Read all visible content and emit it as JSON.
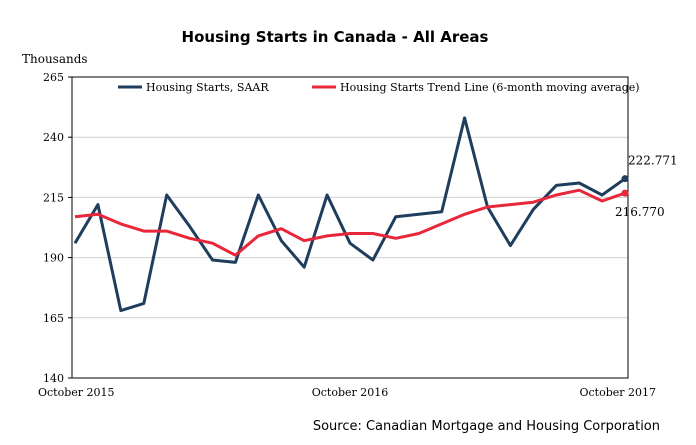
{
  "chart_data": {
    "type": "line",
    "title": "Housing Starts in Canada - All Areas",
    "ylabel": "Thousands",
    "ylim": [
      140,
      265
    ],
    "yticks": [
      140,
      165,
      190,
      215,
      240,
      265
    ],
    "x": [
      "October 2015",
      "November 2015",
      "December 2015",
      "January 2016",
      "February 2016",
      "March 2016",
      "April 2016",
      "May 2016",
      "June 2016",
      "July 2016",
      "August 2016",
      "September 2016",
      "October 2016",
      "November 2016",
      "December 2016",
      "January 2017",
      "February 2017",
      "March 2017",
      "April 2017",
      "May 2017",
      "June 2017",
      "July 2017",
      "August 2017",
      "September 2017",
      "October 2017"
    ],
    "xtick_labels": [
      {
        "index": 0,
        "label": "October 2015"
      },
      {
        "index": 12,
        "label": "October 2016"
      },
      {
        "index": 24,
        "label": "October 2017"
      }
    ],
    "grid": "horizontal",
    "legend_position": "top",
    "series": [
      {
        "name": "Housing Starts, SAAR",
        "color": "#1f3d5c",
        "values": [
          196,
          212,
          168,
          171,
          216,
          203,
          189,
          188,
          216,
          197,
          186,
          216,
          196,
          189,
          207,
          208,
          209,
          248,
          211,
          195,
          210,
          220,
          221,
          216,
          222.771
        ]
      },
      {
        "name": "Housing Starts Trend Line (6-month moving average)",
        "color": "#e8273b",
        "values": [
          207,
          208,
          204,
          201,
          201,
          198,
          196,
          191,
          199,
          202,
          197,
          199,
          200,
          200,
          198,
          200,
          204,
          208,
          211,
          212,
          213,
          216,
          218,
          213.5,
          216.77
        ]
      }
    ],
    "annotations": [
      {
        "series": 0,
        "index": 24,
        "text": "222.771"
      },
      {
        "series": 1,
        "index": 24,
        "text": "216.770"
      }
    ],
    "source": "Source: Canadian Mortgage and Housing Corporation"
  }
}
